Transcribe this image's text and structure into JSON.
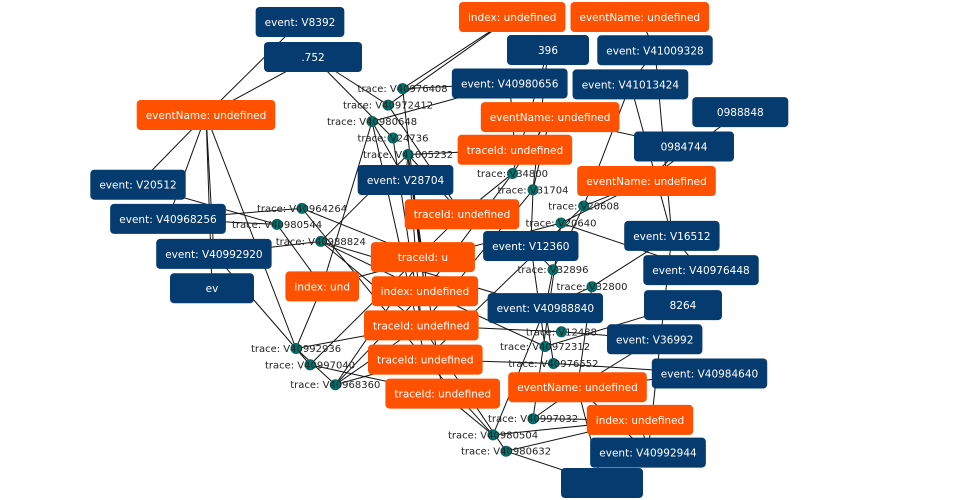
{
  "colors": {
    "event": "#053b6f",
    "attribute": "#ff5100",
    "trace": "#00736f",
    "edge": "#111111",
    "background": "#ffffff"
  },
  "nodes": [
    {
      "id": "a1",
      "type": "attribute",
      "label": "eventName: undefined"
    },
    {
      "id": "e2",
      "type": "event",
      "label": ".752"
    },
    {
      "id": "e1",
      "type": "event",
      "label": "event: V8392"
    },
    {
      "id": "a2",
      "type": "attribute",
      "label": "eventName: undefined"
    },
    {
      "id": "e3",
      "type": "event",
      "label": "396"
    },
    {
      "id": "a3",
      "type": "attribute",
      "label": "index: undefined"
    },
    {
      "id": "e4",
      "type": "event",
      "label": "event: V41009328"
    },
    {
      "id": "e5",
      "type": "event",
      "label": "event: V40980656"
    },
    {
      "id": "e6",
      "type": "event",
      "label": "event: V41013424"
    },
    {
      "id": "e7",
      "type": "event",
      "label": "event: V28704"
    },
    {
      "id": "e9",
      "type": "event",
      "label": "0988848"
    },
    {
      "id": "e8",
      "type": "event",
      "label": "0984744"
    },
    {
      "id": "e10",
      "type": "event",
      "label": "event: V16512"
    },
    {
      "id": "a4",
      "type": "attribute",
      "label": "eventName: undefined"
    },
    {
      "id": "a5",
      "type": "attribute",
      "label": "traceId: undefined"
    },
    {
      "id": "a6",
      "type": "attribute",
      "label": "eventName: undefined"
    },
    {
      "id": "e11",
      "type": "event",
      "label": "event: V20512"
    },
    {
      "id": "e12",
      "type": "event",
      "label": "event: V40968256"
    },
    {
      "id": "e13",
      "type": "event",
      "label": "ev"
    },
    {
      "id": "e14",
      "type": "event",
      "label": "event: V40992920"
    },
    {
      "id": "e15",
      "type": "event",
      "label": "event: V12360"
    },
    {
      "id": "e16",
      "type": "event",
      "label": "event: V40988840"
    },
    {
      "id": "e17",
      "type": "event",
      "label": "8264"
    },
    {
      "id": "e18",
      "type": "event",
      "label": "event: V36992"
    },
    {
      "id": "e19",
      "type": "event",
      "label": "event: V40976448"
    },
    {
      "id": "e20",
      "type": "event",
      "label": "event: V40984640"
    },
    {
      "id": "e21",
      "type": "event",
      "label": "event: V40992944"
    },
    {
      "id": "e22",
      "type": "event",
      "label": ""
    },
    {
      "id": "a7",
      "type": "attribute",
      "label": "traceId: u"
    },
    {
      "id": "a8",
      "type": "attribute",
      "label": "traceId: undefined"
    },
    {
      "id": "a9",
      "type": "attribute",
      "label": "index: und"
    },
    {
      "id": "a10",
      "type": "attribute",
      "label": "index: undefined"
    },
    {
      "id": "a12",
      "type": "attribute",
      "label": "traceId: undefined"
    },
    {
      "id": "a11",
      "type": "attribute",
      "label": "traceId: undefined"
    },
    {
      "id": "a13",
      "type": "attribute",
      "label": "traceId: undefined"
    },
    {
      "id": "a14",
      "type": "attribute",
      "label": "eventName: undefined"
    },
    {
      "id": "a15",
      "type": "attribute",
      "label": "index: undefined"
    },
    {
      "id": "t1",
      "type": "trace",
      "label": "trace: V40976408"
    },
    {
      "id": "t2",
      "type": "trace",
      "label": "trace: V40972412"
    },
    {
      "id": "t3",
      "type": "trace",
      "label": "trace: V24736"
    },
    {
      "id": "t4",
      "type": "trace",
      "label": "trace: V40980648"
    },
    {
      "id": "t5",
      "type": "trace",
      "label": "trace: V41005232"
    },
    {
      "id": "t6",
      "type": "trace",
      "label": "trace: V40964264"
    },
    {
      "id": "t7",
      "type": "trace",
      "label": "trace: V40980544"
    },
    {
      "id": "t8",
      "type": "trace",
      "label": "trace: V40988824"
    },
    {
      "id": "t9",
      "type": "trace",
      "label": "trace: V34800"
    },
    {
      "id": "t10",
      "type": "trace",
      "label": "trace: V31704"
    },
    {
      "id": "t11",
      "type": "trace",
      "label": "trace: V20608"
    },
    {
      "id": "t12",
      "type": "trace",
      "label": "trace: V20640"
    },
    {
      "id": "t13",
      "type": "trace",
      "label": "trace: V32896"
    },
    {
      "id": "t14",
      "type": "trace",
      "label": "trace: V32800"
    },
    {
      "id": "t15",
      "type": "trace",
      "label": "trace: V12488"
    },
    {
      "id": "t16",
      "type": "trace",
      "label": "trace: V40972312"
    },
    {
      "id": "t17",
      "type": "trace",
      "label": "trace: V40976552"
    },
    {
      "id": "t18",
      "type": "trace",
      "label": "trace: V40992936"
    },
    {
      "id": "t19",
      "type": "trace",
      "label": "trace: V40997040"
    },
    {
      "id": "t20",
      "type": "trace",
      "label": "trace: V40968360"
    },
    {
      "id": "t21",
      "type": "trace",
      "label": "trace: V40997032"
    },
    {
      "id": "t22",
      "type": "trace",
      "label": "trace: V40980504"
    },
    {
      "id": "t23",
      "type": "trace",
      "label": "trace: V40980632"
    }
  ],
  "edges": [
    [
      "e2",
      "t2"
    ],
    [
      "e2",
      "t3"
    ],
    [
      "e2",
      "a2"
    ],
    [
      "e1",
      "a2"
    ],
    [
      "a2",
      "e11"
    ],
    [
      "a2",
      "e12"
    ],
    [
      "a2",
      "e14"
    ],
    [
      "a2",
      "t18"
    ],
    [
      "a2",
      "e13"
    ],
    [
      "a1",
      "e4"
    ],
    [
      "e4",
      "e6"
    ],
    [
      "e4",
      "e10"
    ],
    [
      "e6",
      "e10"
    ],
    [
      "e6",
      "t11"
    ],
    [
      "a3",
      "t1"
    ],
    [
      "a3",
      "t2"
    ],
    [
      "e3",
      "t9"
    ],
    [
      "e3",
      "t10"
    ],
    [
      "e5",
      "t1"
    ],
    [
      "e5",
      "t4"
    ],
    [
      "e5",
      "a5"
    ],
    [
      "e7",
      "t4"
    ],
    [
      "e7",
      "t5"
    ],
    [
      "a4",
      "t9"
    ],
    [
      "a4",
      "t10"
    ],
    [
      "a4",
      "e8"
    ],
    [
      "a5",
      "t5"
    ],
    [
      "a6",
      "t11"
    ],
    [
      "a6",
      "t12"
    ],
    [
      "e10",
      "e19"
    ],
    [
      "e10",
      "t14"
    ],
    [
      "e10",
      "e21"
    ],
    [
      "e9",
      "a6"
    ],
    [
      "e8",
      "a6"
    ],
    [
      "e12",
      "t6"
    ],
    [
      "e12",
      "t7"
    ],
    [
      "e14",
      "t8"
    ],
    [
      "e14",
      "t19"
    ],
    [
      "e11",
      "t7"
    ],
    [
      "t6",
      "a7"
    ],
    [
      "t7",
      "a9"
    ],
    [
      "t8",
      "a10"
    ],
    [
      "t8",
      "a11"
    ],
    [
      "t6",
      "a12"
    ],
    [
      "t8",
      "e16"
    ],
    [
      "t5",
      "a7"
    ],
    [
      "t5",
      "a8"
    ],
    [
      "t5",
      "a10"
    ],
    [
      "t5",
      "a11"
    ],
    [
      "t5",
      "a13"
    ],
    [
      "t4",
      "a9"
    ],
    [
      "t4",
      "a12"
    ],
    [
      "t3",
      "a11"
    ],
    [
      "t2",
      "a8"
    ],
    [
      "t1",
      "a10"
    ],
    [
      "t5",
      "t8"
    ],
    [
      "t9",
      "a8"
    ],
    [
      "t9",
      "a10"
    ],
    [
      "t10",
      "a11"
    ],
    [
      "t10",
      "e15"
    ],
    [
      "t11",
      "a12"
    ],
    [
      "t11",
      "t13"
    ],
    [
      "t12",
      "e19"
    ],
    [
      "t12",
      "t21"
    ],
    [
      "t12",
      "a9"
    ],
    [
      "t13",
      "e15"
    ],
    [
      "t13",
      "e16"
    ],
    [
      "t14",
      "a14"
    ],
    [
      "t14",
      "e16"
    ],
    [
      "t15",
      "e18"
    ],
    [
      "t15",
      "a11"
    ],
    [
      "t16",
      "a10"
    ],
    [
      "t16",
      "e17"
    ],
    [
      "t17",
      "e20"
    ],
    [
      "t17",
      "a12"
    ],
    [
      "t18",
      "a9"
    ],
    [
      "t18",
      "a11"
    ],
    [
      "t19",
      "a8"
    ],
    [
      "t19",
      "a13"
    ],
    [
      "t20",
      "a7"
    ],
    [
      "t20",
      "a10"
    ],
    [
      "t20",
      "a11"
    ],
    [
      "t20",
      "a12"
    ],
    [
      "t18",
      "t20"
    ],
    [
      "t21",
      "a14"
    ],
    [
      "t21",
      "a15"
    ],
    [
      "t22",
      "a15"
    ],
    [
      "t22",
      "a13"
    ],
    [
      "t22",
      "a12"
    ],
    [
      "t23",
      "a15"
    ],
    [
      "t23",
      "e22"
    ],
    [
      "t23",
      "a11"
    ],
    [
      "t22",
      "e16"
    ],
    [
      "a14",
      "e21"
    ],
    [
      "a14",
      "e20"
    ],
    [
      "a15",
      "e21"
    ],
    [
      "e18",
      "a14"
    ],
    [
      "a14",
      "e22"
    ],
    [
      "e15",
      "t16"
    ],
    [
      "e16",
      "t17"
    ]
  ]
}
